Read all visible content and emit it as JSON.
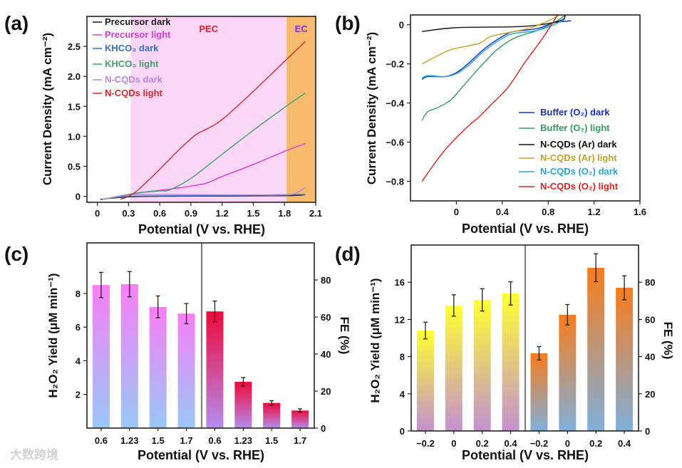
{
  "watermark": "大数跨境",
  "chart_data": [
    {
      "panel": "(a)",
      "type": "line",
      "xlabel": "Potential (V vs. RHE)",
      "ylabel": "Current Density (mA cm⁻²)",
      "xlim": [
        -0.1,
        2.1
      ],
      "ylim": [
        -0.1,
        3.0
      ],
      "xticks": [
        "0",
        "0.3",
        "0.6",
        "0.9",
        "1.2",
        "1.5",
        "1.8",
        "2.1"
      ],
      "xtick_values": [
        0,
        0.3,
        0.6,
        0.9,
        1.2,
        1.5,
        1.8,
        2.1
      ],
      "yticks": [
        "0",
        "0.5",
        "1.0",
        "1.5",
        "2.0",
        "2.5"
      ],
      "ytick_values": [
        0,
        0.5,
        1.0,
        1.5,
        2.0,
        2.5
      ],
      "regions": [
        {
          "label": "PEC",
          "x": [
            0.32,
            1.82
          ],
          "color": "#fcd6f6",
          "label_color": "#e0202a"
        },
        {
          "label": "EC",
          "x": [
            1.82,
            2.1
          ],
          "color": "#f6bb6c",
          "label_color": "#8a2be2"
        }
      ],
      "legend_position": "top-left",
      "series": [
        {
          "name": "Precursor dark",
          "color": "#1a1a1a",
          "points": [
            [
              0.03,
              -0.05
            ],
            [
              0.3,
              -0.01
            ],
            [
              0.6,
              0.0
            ],
            [
              1.8,
              0.01
            ],
            [
              2.0,
              0.03
            ]
          ]
        },
        {
          "name": "Precursor light",
          "color": "#d63ad6",
          "points": [
            [
              0.05,
              -0.05
            ],
            [
              0.3,
              0.03
            ],
            [
              0.5,
              0.08
            ],
            [
              0.7,
              0.12
            ],
            [
              0.9,
              0.17
            ],
            [
              1.05,
              0.22
            ],
            [
              1.2,
              0.33
            ],
            [
              1.5,
              0.53
            ],
            [
              1.8,
              0.75
            ],
            [
              2.0,
              0.88
            ]
          ]
        },
        {
          "name": "KHCO₃ dark",
          "color": "#2f6fcf",
          "points": [
            [
              0.05,
              -0.05
            ],
            [
              0.3,
              0.0
            ],
            [
              1.0,
              0.01
            ],
            [
              2.0,
              0.03
            ]
          ]
        },
        {
          "name": "KHCO₃ light",
          "color": "#3ea06a",
          "points": [
            [
              0.05,
              -0.05
            ],
            [
              0.2,
              0.0
            ],
            [
              0.4,
              0.06
            ],
            [
              0.6,
              0.09
            ],
            [
              0.7,
              0.11
            ],
            [
              0.9,
              0.3
            ],
            [
              1.2,
              0.7
            ],
            [
              1.5,
              1.1
            ],
            [
              1.8,
              1.48
            ],
            [
              2.0,
              1.72
            ]
          ]
        },
        {
          "name": "N-CQDs dark",
          "color": "#b487e0",
          "points": [
            [
              0.05,
              -0.05
            ],
            [
              0.3,
              0.02
            ],
            [
              0.5,
              0.03
            ],
            [
              1.7,
              0.02
            ],
            [
              1.9,
              0.05
            ],
            [
              2.0,
              0.15
            ]
          ]
        },
        {
          "name": "N-CQDs light",
          "color": "#d42a2a",
          "points": [
            [
              0.22,
              -0.05
            ],
            [
              0.3,
              0.0
            ],
            [
              0.4,
              0.12
            ],
            [
              0.6,
              0.45
            ],
            [
              0.8,
              0.8
            ],
            [
              0.95,
              1.03
            ],
            [
              1.05,
              1.12
            ],
            [
              1.2,
              1.28
            ],
            [
              1.5,
              1.75
            ],
            [
              1.8,
              2.25
            ],
            [
              2.0,
              2.58
            ]
          ]
        }
      ]
    },
    {
      "panel": "(b)",
      "type": "line",
      "xlabel": "Potential (V vs. RHE)",
      "ylabel": "Current Density (mA cm⁻²)",
      "xlim": [
        -0.4,
        1.6
      ],
      "ylim": [
        -0.9,
        0.05
      ],
      "xticks": [
        "0",
        "0.4",
        "0.8",
        "1.2",
        "1.6"
      ],
      "xtick_values": [
        0,
        0.4,
        0.8,
        1.2,
        1.6
      ],
      "yticks": [
        "0",
        "−0.2",
        "−0.4",
        "−0.6",
        "−0.8"
      ],
      "ytick_values": [
        0,
        -0.2,
        -0.4,
        -0.6,
        -0.8
      ],
      "legend_position": "bottom-right",
      "series": [
        {
          "name": "Buffer (O₂) dark",
          "color": "#1530d0",
          "points": [
            [
              -0.3,
              -0.28
            ],
            [
              -0.25,
              -0.265
            ],
            [
              -0.1,
              -0.265
            ],
            [
              0,
              -0.245
            ],
            [
              0.1,
              -0.2
            ],
            [
              0.25,
              -0.12
            ],
            [
              0.4,
              -0.06
            ],
            [
              0.5,
              -0.035
            ],
            [
              0.7,
              -0.02
            ],
            [
              0.85,
              0.01
            ],
            [
              1.0,
              0.02
            ]
          ]
        },
        {
          "name": "Buffer (O₂) light",
          "color": "#2e9e62",
          "points": [
            [
              -0.3,
              -0.49
            ],
            [
              -0.25,
              -0.445
            ],
            [
              -0.15,
              -0.42
            ],
            [
              -0.05,
              -0.385
            ],
            [
              0.05,
              -0.32
            ],
            [
              0.2,
              -0.22
            ],
            [
              0.35,
              -0.13
            ],
            [
              0.5,
              -0.07
            ],
            [
              0.7,
              -0.03
            ],
            [
              0.85,
              0.01
            ],
            [
              0.95,
              0.05
            ]
          ]
        },
        {
          "name": "N-CQDs (Ar) dark",
          "color": "#111111",
          "points": [
            [
              -0.3,
              -0.035
            ],
            [
              0,
              -0.015
            ],
            [
              0.6,
              -0.008
            ],
            [
              0.9,
              0.02
            ],
            [
              0.95,
              0.05
            ]
          ]
        },
        {
          "name": "N-CQDs (Ar) light",
          "color": "#c9a021",
          "points": [
            [
              -0.3,
              -0.2
            ],
            [
              -0.1,
              -0.14
            ],
            [
              0,
              -0.12
            ],
            [
              0.2,
              -0.095
            ],
            [
              0.3,
              -0.06
            ],
            [
              0.5,
              -0.035
            ],
            [
              0.65,
              -0.015
            ],
            [
              0.8,
              0.02
            ],
            [
              0.9,
              0.05
            ]
          ]
        },
        {
          "name": "N-CQDs (O₂) dark",
          "color": "#23a6d8",
          "points": [
            [
              -0.3,
              -0.275
            ],
            [
              -0.25,
              -0.26
            ],
            [
              -0.1,
              -0.265
            ],
            [
              0,
              -0.25
            ],
            [
              0.1,
              -0.21
            ],
            [
              0.25,
              -0.13
            ],
            [
              0.4,
              -0.07
            ],
            [
              0.5,
              -0.045
            ],
            [
              0.7,
              -0.03
            ],
            [
              0.85,
              0.0
            ],
            [
              0.95,
              0.03
            ]
          ]
        },
        {
          "name": "N-CQDs (O₂) light",
          "color": "#e01f1f",
          "points": [
            [
              -0.3,
              -0.8
            ],
            [
              -0.1,
              -0.64
            ],
            [
              0.1,
              -0.52
            ],
            [
              0.2,
              -0.47
            ],
            [
              0.3,
              -0.41
            ],
            [
              0.45,
              -0.32
            ],
            [
              0.6,
              -0.19
            ],
            [
              0.75,
              -0.07
            ],
            [
              0.85,
              0.02
            ],
            [
              0.88,
              0.05
            ]
          ]
        }
      ]
    },
    {
      "panel": "(c)",
      "type": "bar",
      "xlabel": "Potential (V vs. RHE)",
      "ylabel": "H₂O₂ Yield (μM min⁻¹)",
      "ylabel_right": "FE (%)",
      "ylim": [
        0,
        11
      ],
      "ylim_right": [
        0,
        100
      ],
      "yticks": [
        "2",
        "4",
        "6",
        "8"
      ],
      "ytick_values": [
        2,
        4,
        6,
        8
      ],
      "yticks_right": [
        "0",
        "20",
        "40",
        "60",
        "80"
      ],
      "ytick_values_right": [
        0,
        20,
        40,
        60,
        80
      ],
      "groups": [
        {
          "name": "Yield",
          "axis": "left",
          "categories": [
            "0.6",
            "1.23",
            "1.5",
            "1.7"
          ],
          "values": [
            8.5,
            8.55,
            7.2,
            6.8
          ],
          "errors": [
            0.75,
            0.75,
            0.65,
            0.6
          ],
          "gradient": [
            "#f77ef5",
            "#99c8f8"
          ]
        },
        {
          "name": "FE",
          "axis": "right",
          "categories": [
            "0.6",
            "1.23",
            "1.5",
            "1.7"
          ],
          "values": [
            63,
            25,
            13.6,
            9.5
          ],
          "errors": [
            5.6,
            2.3,
            1.2,
            0.9
          ],
          "gradient": [
            "#ee0a3a",
            "#b48cf0"
          ]
        }
      ]
    },
    {
      "panel": "(d)",
      "type": "bar",
      "xlabel": "Potential (V vs. RHE)",
      "ylabel": "H₂O₂ Yield (μM min⁻¹)",
      "ylabel_right": "FE (%)",
      "ylim": [
        0,
        20
      ],
      "ylim_right": [
        0,
        100
      ],
      "yticks": [
        "0",
        "4",
        "8",
        "12",
        "16"
      ],
      "ytick_values": [
        0,
        4,
        8,
        12,
        16
      ],
      "yticks_right": [
        "0",
        "20",
        "40",
        "60",
        "80"
      ],
      "ytick_values_right": [
        0,
        20,
        40,
        60,
        80
      ],
      "groups": [
        {
          "name": "Yield",
          "axis": "left",
          "categories": [
            "−0.2",
            "0",
            "0.2",
            "0.4"
          ],
          "values": [
            10.8,
            13.5,
            14.1,
            14.8
          ],
          "errors": [
            0.9,
            1.15,
            1.2,
            1.25
          ],
          "gradient": [
            "#ffff30",
            "#c490d0"
          ]
        },
        {
          "name": "FE",
          "axis": "right",
          "categories": [
            "−0.2",
            "0",
            "0.2",
            "0.4"
          ],
          "values": [
            41.8,
            62.5,
            87.8,
            77
          ],
          "errors": [
            3.6,
            5.5,
            7.5,
            6.5
          ],
          "gradient": [
            "#f87c1c",
            "#7fb0dc"
          ]
        }
      ]
    }
  ]
}
